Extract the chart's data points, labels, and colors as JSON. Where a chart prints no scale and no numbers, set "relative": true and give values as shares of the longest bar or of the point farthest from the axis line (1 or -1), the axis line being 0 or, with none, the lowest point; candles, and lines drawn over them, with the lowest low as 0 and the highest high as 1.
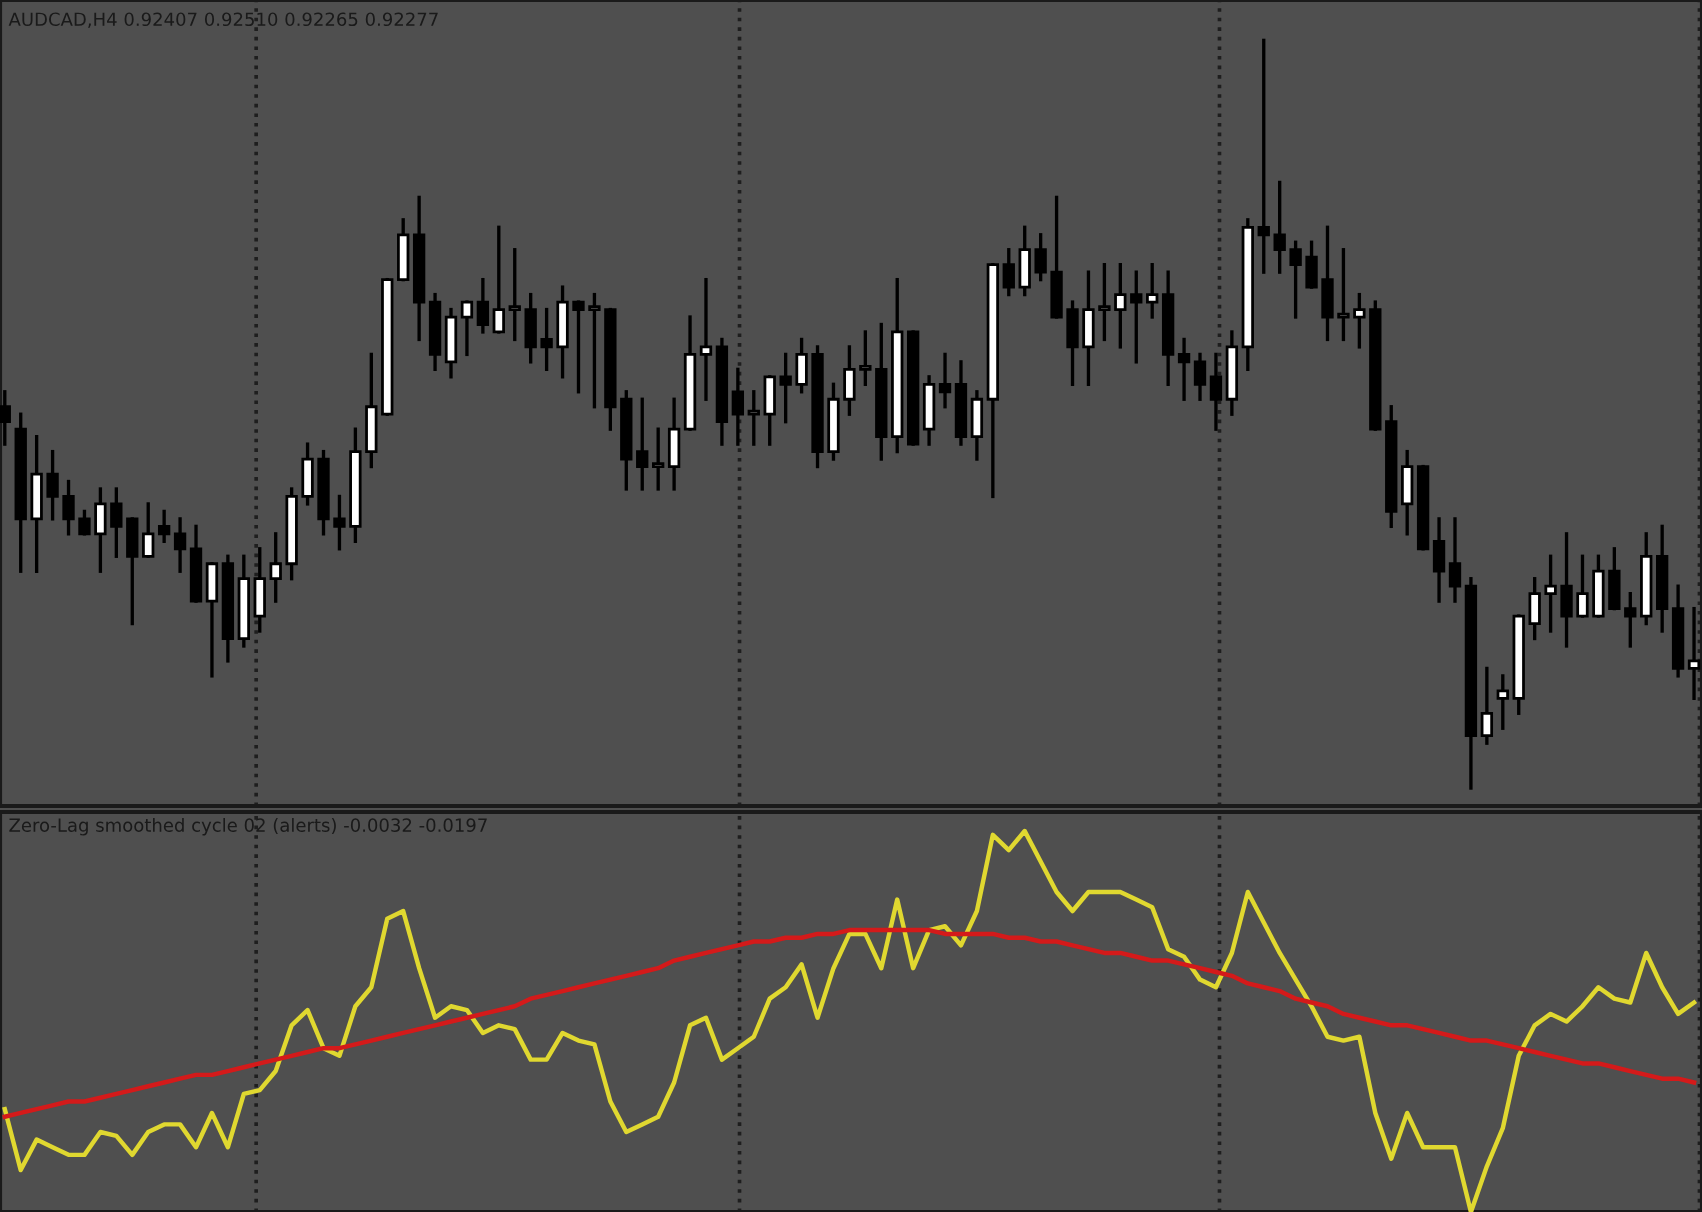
{
  "chart_data": [
    {
      "type": "candlestick",
      "title": "AUDCAD,H4 0.92407 0.92510 0.92265 0.92277",
      "relative": true,
      "tick_labels": false,
      "categories": [
        null,
        null,
        null,
        null,
        null,
        null,
        null,
        null,
        null,
        null,
        null,
        null,
        null,
        null,
        null,
        null,
        null,
        null,
        null,
        null,
        null,
        null,
        null,
        null,
        null,
        null,
        null,
        null,
        null,
        null,
        null,
        null,
        null,
        null,
        null,
        null,
        null,
        null,
        null,
        null,
        null,
        null,
        null,
        null,
        null,
        null,
        null,
        null,
        null,
        null,
        null,
        null,
        null,
        null,
        null,
        null,
        null,
        null,
        null,
        null,
        null,
        null,
        null,
        null,
        null,
        null,
        null,
        null,
        null,
        null,
        null,
        null,
        null,
        null,
        null,
        null,
        null,
        null,
        null,
        null,
        null,
        null,
        null,
        null,
        null,
        null,
        null,
        null,
        null,
        null,
        null,
        null,
        null,
        null,
        null,
        null,
        null,
        null,
        null,
        null,
        null,
        null,
        null,
        null,
        null,
        null,
        null
      ],
      "ohlc": [
        [
          0.51,
          0.53,
          0.46,
          0.49
        ],
        [
          0.48,
          0.5,
          0.29,
          0.36
        ],
        [
          0.36,
          0.47,
          0.29,
          0.42
        ],
        [
          0.42,
          0.45,
          0.36,
          0.39
        ],
        [
          0.39,
          0.41,
          0.34,
          0.36
        ],
        [
          0.36,
          0.37,
          0.34,
          0.34
        ],
        [
          0.34,
          0.4,
          0.29,
          0.38
        ],
        [
          0.38,
          0.4,
          0.31,
          0.35
        ],
        [
          0.36,
          0.36,
          0.22,
          0.31
        ],
        [
          0.31,
          0.38,
          0.31,
          0.34
        ],
        [
          0.35,
          0.37,
          0.33,
          0.34
        ],
        [
          0.34,
          0.36,
          0.29,
          0.32
        ],
        [
          0.32,
          0.35,
          0.25,
          0.25
        ],
        [
          0.25,
          0.3,
          0.15,
          0.3
        ],
        [
          0.3,
          0.31,
          0.17,
          0.2
        ],
        [
          0.2,
          0.31,
          0.19,
          0.28
        ],
        [
          0.23,
          0.32,
          0.21,
          0.28
        ],
        [
          0.28,
          0.34,
          0.25,
          0.3
        ],
        [
          0.3,
          0.4,
          0.28,
          0.39
        ],
        [
          0.39,
          0.46,
          0.38,
          0.44
        ],
        [
          0.44,
          0.45,
          0.34,
          0.36
        ],
        [
          0.36,
          0.39,
          0.32,
          0.35
        ],
        [
          0.35,
          0.48,
          0.33,
          0.45
        ],
        [
          0.45,
          0.58,
          0.43,
          0.51
        ],
        [
          0.5,
          0.68,
          0.5,
          0.68
        ],
        [
          0.68,
          0.76,
          0.68,
          0.74
        ],
        [
          0.74,
          0.79,
          0.6,
          0.65
        ],
        [
          0.65,
          0.66,
          0.56,
          0.58
        ],
        [
          0.57,
          0.64,
          0.55,
          0.63
        ],
        [
          0.63,
          0.65,
          0.58,
          0.65
        ],
        [
          0.65,
          0.68,
          0.61,
          0.62
        ],
        [
          0.61,
          0.75,
          0.61,
          0.64
        ],
        [
          0.64,
          0.72,
          0.6,
          0.64
        ],
        [
          0.64,
          0.66,
          0.57,
          0.59
        ],
        [
          0.6,
          0.64,
          0.56,
          0.59
        ],
        [
          0.59,
          0.67,
          0.55,
          0.65
        ],
        [
          0.65,
          0.65,
          0.53,
          0.64
        ],
        [
          0.64,
          0.66,
          0.51,
          0.64
        ],
        [
          0.64,
          0.64,
          0.48,
          0.51
        ],
        [
          0.52,
          0.53,
          0.4,
          0.44
        ],
        [
          0.45,
          0.52,
          0.4,
          0.43
        ],
        [
          0.43,
          0.48,
          0.4,
          0.43
        ],
        [
          0.43,
          0.52,
          0.4,
          0.48
        ],
        [
          0.48,
          0.63,
          0.48,
          0.58
        ],
        [
          0.58,
          0.68,
          0.52,
          0.59
        ],
        [
          0.59,
          0.6,
          0.46,
          0.49
        ],
        [
          0.53,
          0.56,
          0.46,
          0.5
        ],
        [
          0.5,
          0.53,
          0.46,
          0.5
        ],
        [
          0.5,
          0.55,
          0.46,
          0.55
        ],
        [
          0.55,
          0.58,
          0.49,
          0.54
        ],
        [
          0.54,
          0.6,
          0.53,
          0.58
        ],
        [
          0.58,
          0.59,
          0.43,
          0.45
        ],
        [
          0.45,
          0.54,
          0.44,
          0.52
        ],
        [
          0.52,
          0.59,
          0.5,
          0.56
        ],
        [
          0.56,
          0.61,
          0.54,
          0.56
        ],
        [
          0.56,
          0.62,
          0.44,
          0.47
        ],
        [
          0.47,
          0.68,
          0.45,
          0.61
        ],
        [
          0.61,
          0.61,
          0.46,
          0.46
        ],
        [
          0.48,
          0.55,
          0.46,
          0.54
        ],
        [
          0.54,
          0.58,
          0.51,
          0.53
        ],
        [
          0.54,
          0.57,
          0.46,
          0.47
        ],
        [
          0.47,
          0.53,
          0.44,
          0.52
        ],
        [
          0.52,
          0.7,
          0.39,
          0.7
        ],
        [
          0.7,
          0.72,
          0.66,
          0.67
        ],
        [
          0.67,
          0.75,
          0.66,
          0.72
        ],
        [
          0.72,
          0.74,
          0.68,
          0.69
        ],
        [
          0.69,
          0.79,
          0.63,
          0.63
        ],
        [
          0.64,
          0.65,
          0.54,
          0.59
        ],
        [
          0.59,
          0.69,
          0.54,
          0.64
        ],
        [
          0.64,
          0.7,
          0.6,
          0.64
        ],
        [
          0.64,
          0.7,
          0.59,
          0.66
        ],
        [
          0.66,
          0.69,
          0.57,
          0.65
        ],
        [
          0.65,
          0.7,
          0.63,
          0.66
        ],
        [
          0.66,
          0.69,
          0.54,
          0.58
        ],
        [
          0.58,
          0.6,
          0.52,
          0.57
        ],
        [
          0.57,
          0.58,
          0.52,
          0.54
        ],
        [
          0.55,
          0.58,
          0.48,
          0.52
        ],
        [
          0.52,
          0.61,
          0.5,
          0.59
        ],
        [
          0.59,
          0.76,
          0.56,
          0.75
        ],
        [
          0.75,
          1.0,
          0.69,
          0.74
        ],
        [
          0.74,
          0.81,
          0.69,
          0.72
        ],
        [
          0.72,
          0.73,
          0.63,
          0.7
        ],
        [
          0.71,
          0.73,
          0.67,
          0.67
        ],
        [
          0.68,
          0.75,
          0.6,
          0.63
        ],
        [
          0.63,
          0.72,
          0.6,
          0.63
        ],
        [
          0.63,
          0.66,
          0.59,
          0.64
        ],
        [
          0.64,
          0.65,
          0.48,
          0.48
        ],
        [
          0.49,
          0.51,
          0.35,
          0.37
        ],
        [
          0.38,
          0.45,
          0.34,
          0.43
        ],
        [
          0.43,
          0.43,
          0.32,
          0.32
        ],
        [
          0.33,
          0.36,
          0.25,
          0.29
        ],
        [
          0.3,
          0.36,
          0.25,
          0.27
        ],
        [
          0.27,
          0.28,
          0.0,
          0.07
        ],
        [
          0.07,
          0.16,
          0.06,
          0.1
        ],
        [
          0.12,
          0.15,
          0.08,
          0.13
        ],
        [
          0.12,
          0.23,
          0.1,
          0.23
        ],
        [
          0.22,
          0.28,
          0.2,
          0.26
        ],
        [
          0.26,
          0.31,
          0.21,
          0.27
        ],
        [
          0.27,
          0.34,
          0.19,
          0.23
        ],
        [
          0.23,
          0.31,
          0.23,
          0.26
        ],
        [
          0.23,
          0.31,
          0.23,
          0.29
        ],
        [
          0.29,
          0.32,
          0.24,
          0.24
        ],
        [
          0.24,
          0.26,
          0.19,
          0.23
        ],
        [
          0.23,
          0.34,
          0.22,
          0.31
        ],
        [
          0.31,
          0.35,
          0.21,
          0.24
        ],
        [
          0.24,
          0.27,
          0.15,
          0.16
        ],
        [
          0.16,
          0.24,
          0.12,
          0.17
        ]
      ]
    },
    {
      "type": "line",
      "title": "Zero-Lag smoothed cycle 02 (alerts) -0.0032 -0.0197",
      "relative": true,
      "tick_labels": false,
      "categories": [
        null,
        null,
        null,
        null,
        null,
        null,
        null,
        null,
        null,
        null,
        null,
        null,
        null,
        null,
        null,
        null,
        null,
        null,
        null,
        null,
        null,
        null,
        null,
        null,
        null,
        null,
        null,
        null,
        null,
        null,
        null,
        null,
        null,
        null,
        null,
        null,
        null,
        null,
        null,
        null,
        null,
        null,
        null,
        null,
        null,
        null,
        null,
        null,
        null,
        null,
        null,
        null,
        null,
        null,
        null,
        null,
        null,
        null,
        null,
        null,
        null,
        null,
        null,
        null,
        null,
        null,
        null,
        null,
        null,
        null,
        null,
        null,
        null,
        null,
        null,
        null,
        null,
        null,
        null,
        null,
        null,
        null,
        null,
        null,
        null,
        null,
        null,
        null,
        null,
        null,
        null,
        null,
        null,
        null,
        null,
        null,
        null,
        null,
        null,
        null,
        null,
        null,
        null,
        null,
        null,
        null,
        null
      ],
      "series": [
        {
          "color": "#e0d830",
          "values": [
            0.27,
            0.11,
            0.19,
            0.17,
            0.15,
            0.15,
            0.21,
            0.2,
            0.15,
            0.21,
            0.23,
            0.23,
            0.17,
            0.26,
            0.17,
            0.31,
            0.32,
            0.37,
            0.49,
            0.53,
            0.43,
            0.41,
            0.54,
            0.59,
            0.77,
            0.79,
            0.64,
            0.51,
            0.54,
            0.53,
            0.47,
            0.49,
            0.48,
            0.4,
            0.4,
            0.47,
            0.45,
            0.44,
            0.29,
            0.21,
            0.23,
            0.25,
            0.34,
            0.49,
            0.51,
            0.4,
            0.43,
            0.46,
            0.56,
            0.59,
            0.65,
            0.51,
            0.64,
            0.73,
            0.73,
            0.64,
            0.82,
            0.64,
            0.74,
            0.75,
            0.7,
            0.79,
            0.99,
            0.95,
            1.0,
            0.92,
            0.84,
            0.79,
            0.84,
            0.84,
            0.84,
            0.82,
            0.8,
            0.69,
            0.67,
            0.61,
            0.59,
            0.68,
            0.84,
            0.76,
            0.68,
            0.61,
            0.54,
            0.46,
            0.45,
            0.46,
            0.26,
            0.14,
            0.26,
            0.17,
            0.17,
            0.17,
            0,
            0.12,
            0.22,
            0.41,
            0.49,
            0.52,
            0.5,
            0.54,
            0.59,
            0.56,
            0.55,
            0.68,
            0.59,
            0.52,
            0.55
          ]
        },
        {
          "color": "#d41a1a",
          "values": [
            0.25,
            0.26,
            0.27,
            0.28,
            0.29,
            0.29,
            0.3,
            0.31,
            0.32,
            0.33,
            0.34,
            0.35,
            0.36,
            0.36,
            0.37,
            0.38,
            0.39,
            0.4,
            0.41,
            0.42,
            0.43,
            0.43,
            0.44,
            0.45,
            0.46,
            0.47,
            0.48,
            0.49,
            0.5,
            0.51,
            0.52,
            0.53,
            0.54,
            0.56,
            0.57,
            0.58,
            0.59,
            0.6,
            0.61,
            0.62,
            0.63,
            0.64,
            0.66,
            0.67,
            0.68,
            0.69,
            0.7,
            0.71,
            0.71,
            0.72,
            0.72,
            0.73,
            0.73,
            0.74,
            0.74,
            0.74,
            0.74,
            0.74,
            0.74,
            0.73,
            0.73,
            0.73,
            0.73,
            0.72,
            0.72,
            0.71,
            0.71,
            0.7,
            0.69,
            0.68,
            0.68,
            0.67,
            0.66,
            0.66,
            0.65,
            0.64,
            0.63,
            0.62,
            0.6,
            0.59,
            0.58,
            0.56,
            0.55,
            0.54,
            0.52,
            0.51,
            0.5,
            0.49,
            0.49,
            0.48,
            0.47,
            0.46,
            0.45,
            0.45,
            0.44,
            0.43,
            0.42,
            0.41,
            0.4,
            0.39,
            0.39,
            0.38,
            0.37,
            0.36,
            0.35,
            0.35,
            0.34
          ]
        }
      ]
    }
  ]
}
